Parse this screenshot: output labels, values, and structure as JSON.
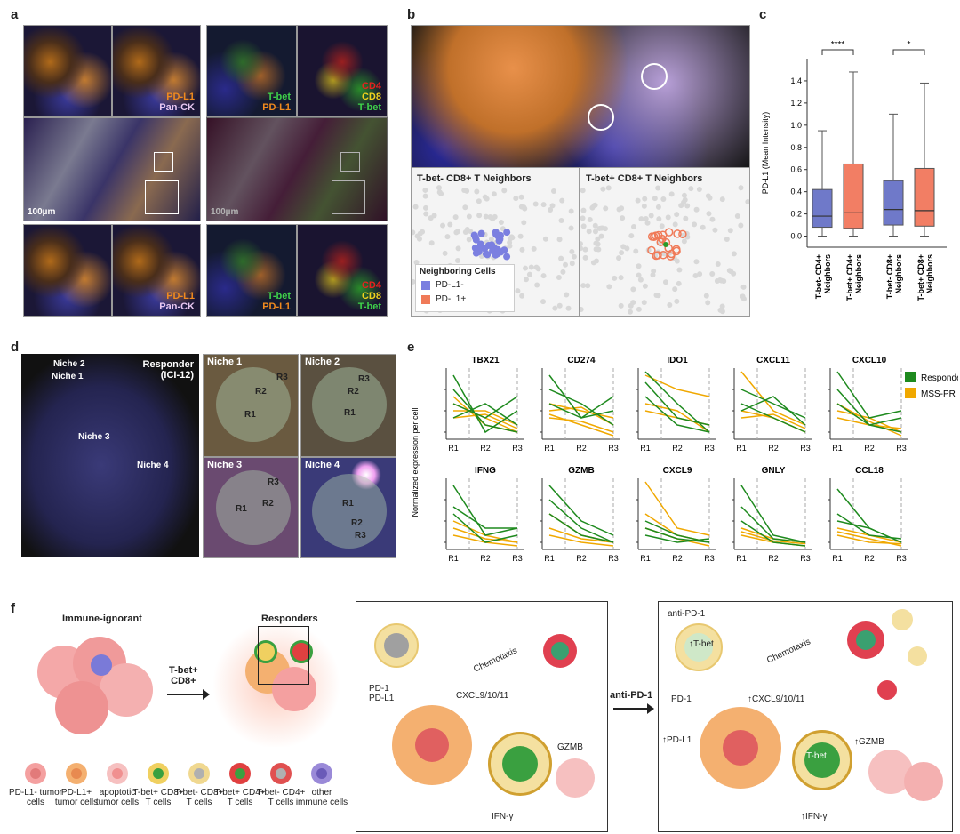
{
  "panels": {
    "a": "a",
    "b": "b",
    "c": "c",
    "d": "d",
    "e": "e",
    "f": "f"
  },
  "panel_a": {
    "tile_labels": [
      {
        "l1": "PD-L1",
        "l2": "Pan-CK",
        "c1": "#f08a1e",
        "c2": "#e8c8f0"
      },
      {
        "l1": "T-bet",
        "l2": "PD-L1",
        "c1": "#3fd24a",
        "c2": "#f08a1e"
      },
      {
        "l1": "CD4",
        "l2": "CD8",
        "l3": "T-bet",
        "c1": "#e82020",
        "c2": "#f0d21e",
        "c3": "#3fd24a"
      }
    ],
    "scale_label": "100µm"
  },
  "panel_b": {
    "left_title": "T-bet- CD8+ T Neighbors",
    "right_title": "T-bet+ CD8+ T Neighbors",
    "legend_title": "Neighboring Cells",
    "legend": [
      {
        "label": "PD-L1-",
        "color": "#7b7fe0"
      },
      {
        "label": "PD-L1+",
        "color": "#f07a58"
      }
    ]
  },
  "panel_c": {
    "ylabel": "PD-L1 (Mean Intensity)",
    "significance": [
      "****",
      "*"
    ],
    "chart_data": {
      "type": "box",
      "ylabel": "PD-L1 (Mean Intensity)",
      "ylim": [
        -0.1,
        1.6
      ],
      "yticks": [
        "0.0",
        "0.2",
        "0.4",
        "0.6",
        "0.8",
        "1.0",
        "1.2",
        "1.4"
      ],
      "categories": [
        "T-bet- CD4+ Neighbors",
        "T-bet+ CD4+ Neighbors",
        "T-bet- CD8+ Neighbors",
        "T-bet+ CD8+ Neighbors"
      ],
      "boxes": [
        {
          "min": 0.0,
          "q1": 0.08,
          "median": 0.18,
          "q3": 0.42,
          "max": 0.95,
          "color": "#6f79c9"
        },
        {
          "min": 0.0,
          "q1": 0.07,
          "median": 0.21,
          "q3": 0.65,
          "max": 1.48,
          "color": "#f27e64"
        },
        {
          "min": 0.0,
          "q1": 0.1,
          "median": 0.24,
          "q3": 0.5,
          "max": 1.1,
          "color": "#6f79c9"
        },
        {
          "min": 0.0,
          "q1": 0.09,
          "median": 0.23,
          "q3": 0.61,
          "max": 1.38,
          "color": "#f27e64"
        }
      ]
    }
  },
  "panel_d": {
    "main_label": "Responder",
    "main_sub": "(ICI-12)",
    "niches": [
      "Niche 1",
      "Niche 2",
      "Niche 3",
      "Niche 4"
    ],
    "regions": [
      "R1",
      "R2",
      "R3"
    ]
  },
  "panel_e": {
    "ylabel": "Normalized expression per cell",
    "legend": [
      {
        "label": "Responder",
        "color": "#1e8a1e"
      },
      {
        "label": "MSS-PR",
        "color": "#f0a800"
      }
    ],
    "chart_data": {
      "type": "line",
      "x": [
        "R1",
        "R2",
        "R3"
      ],
      "genes": [
        {
          "name": "TBX21",
          "responder": [
            [
              0.9,
              0.1,
              0.4
            ],
            [
              0.7,
              0.2,
              0.1
            ],
            [
              0.5,
              0.3,
              0.6
            ],
            [
              0.3,
              0.5,
              0.2
            ]
          ],
          "msspr": [
            [
              0.5,
              0.3,
              0.1
            ],
            [
              0.4,
              0.4,
              0.2
            ],
            [
              0.3,
              0.35,
              0.15
            ],
            [
              0.6,
              0.2,
              0.1
            ]
          ]
        },
        {
          "name": "CD274",
          "responder": [
            [
              0.9,
              0.3,
              0.6
            ],
            [
              0.7,
              0.5,
              0.2
            ],
            [
              0.5,
              0.3,
              0.4
            ]
          ],
          "msspr": [
            [
              0.4,
              0.45,
              0.2
            ],
            [
              0.3,
              0.25,
              0.1
            ],
            [
              0.5,
              0.4,
              0.3
            ],
            [
              0.35,
              0.2,
              0.05
            ]
          ]
        },
        {
          "name": "IDO1",
          "responder": [
            [
              0.95,
              0.5,
              0.1
            ],
            [
              0.8,
              0.3,
              0.2
            ],
            [
              0.6,
              0.2,
              0.1
            ]
          ],
          "msspr": [
            [
              0.9,
              0.7,
              0.6
            ],
            [
              0.5,
              0.4,
              0.1
            ],
            [
              0.4,
              0.3,
              0.2
            ]
          ]
        },
        {
          "name": "CXCL11",
          "responder": [
            [
              0.7,
              0.5,
              0.3
            ],
            [
              0.5,
              0.3,
              0.1
            ],
            [
              0.4,
              0.6,
              0.2
            ]
          ],
          "msspr": [
            [
              0.95,
              0.4,
              0.2
            ],
            [
              0.4,
              0.3,
              0.1
            ],
            [
              0.3,
              0.35,
              0.15
            ]
          ]
        },
        {
          "name": "CXCL10",
          "responder": [
            [
              0.95,
              0.3,
              0.4
            ],
            [
              0.7,
              0.2,
              0.1
            ],
            [
              0.5,
              0.2,
              0.3
            ]
          ],
          "msspr": [
            [
              0.4,
              0.3,
              0.1
            ],
            [
              0.3,
              0.2,
              0.15
            ],
            [
              0.5,
              0.25,
              0.05
            ]
          ]
        },
        {
          "name": "IFNG",
          "responder": [
            [
              0.9,
              0.2,
              0.3
            ],
            [
              0.6,
              0.3,
              0.3
            ],
            [
              0.5,
              0.1,
              0.2
            ]
          ],
          "msspr": [
            [
              0.4,
              0.2,
              0.1
            ],
            [
              0.3,
              0.15,
              0.1
            ],
            [
              0.2,
              0.1,
              0.05
            ]
          ]
        },
        {
          "name": "GZMB",
          "responder": [
            [
              0.9,
              0.4,
              0.2
            ],
            [
              0.7,
              0.3,
              0.1
            ],
            [
              0.5,
              0.2,
              0.1
            ]
          ],
          "msspr": [
            [
              0.5,
              0.2,
              0.1
            ],
            [
              0.3,
              0.15,
              0.1
            ],
            [
              0.2,
              0.1,
              0.05
            ]
          ]
        },
        {
          "name": "CXCL9",
          "responder": [
            [
              0.4,
              0.2,
              0.1
            ],
            [
              0.3,
              0.15,
              0.1
            ],
            [
              0.2,
              0.1,
              0.15
            ]
          ],
          "msspr": [
            [
              0.95,
              0.3,
              0.2
            ],
            [
              0.5,
              0.2,
              0.1
            ],
            [
              0.3,
              0.15,
              0.05
            ]
          ]
        },
        {
          "name": "GNLY",
          "responder": [
            [
              0.9,
              0.2,
              0.1
            ],
            [
              0.6,
              0.15,
              0.1
            ],
            [
              0.4,
              0.1,
              0.05
            ]
          ],
          "msspr": [
            [
              0.3,
              0.15,
              0.1
            ],
            [
              0.2,
              0.1,
              0.05
            ],
            [
              0.25,
              0.12,
              0.08
            ]
          ]
        },
        {
          "name": "CCL18",
          "responder": [
            [
              0.85,
              0.3,
              0.1
            ],
            [
              0.5,
              0.2,
              0.15
            ],
            [
              0.4,
              0.3,
              0.1
            ]
          ],
          "msspr": [
            [
              0.3,
              0.2,
              0.1
            ],
            [
              0.25,
              0.15,
              0.05
            ],
            [
              0.2,
              0.1,
              0.08
            ]
          ]
        }
      ]
    }
  },
  "panel_f": {
    "immune_ignorant": "Immune-ignorant",
    "tbet_cd8_l1": "T-bet+",
    "tbet_cd8_l2": "CD8+",
    "responders": "Responders",
    "chemotaxis": "Chemotaxis",
    "pd1": "PD-1",
    "pdl1": "PD-L1",
    "cxcl": "CXCL9/10/11",
    "gzmb": "GZMB",
    "ifng": "IFN-γ",
    "anti_pd1": "anti-PD-1",
    "tbet": "T-bet",
    "up_pdl1": "↑PD-L1",
    "up_cxcl": "↑CXCL9/10/11",
    "up_gzmb": "↑GZMB",
    "up_ifng": "↑IFN-γ",
    "up_tbet": "↑T-bet",
    "legend": [
      {
        "label": "PD-L1- tumor cells",
        "color": "#f4a0a0",
        "inner": "#e27a7a"
      },
      {
        "label": "PD-L1+ tumor cells",
        "color": "#f4b070",
        "inner": "#e88a50"
      },
      {
        "label": "apoptotic tumor cells",
        "color": "#f6c0c0",
        "inner": "#f09090"
      },
      {
        "label": "T-bet+ CD8+ T cells",
        "color": "#f0d060",
        "inner": "#3aa040"
      },
      {
        "label": "T-bet- CD8+ T cells",
        "color": "#f0d890",
        "inner": "#b0b0b0"
      },
      {
        "label": "T-bet+ CD4+ T cells",
        "color": "#e04040",
        "inner": "#3aa040"
      },
      {
        "label": "T-bet- CD4+ T cells",
        "color": "#e05050",
        "inner": "#b0b0b0"
      },
      {
        "label": "other immune cells",
        "color": "#9a8ad8",
        "inner": "#6a5ab8"
      }
    ]
  }
}
